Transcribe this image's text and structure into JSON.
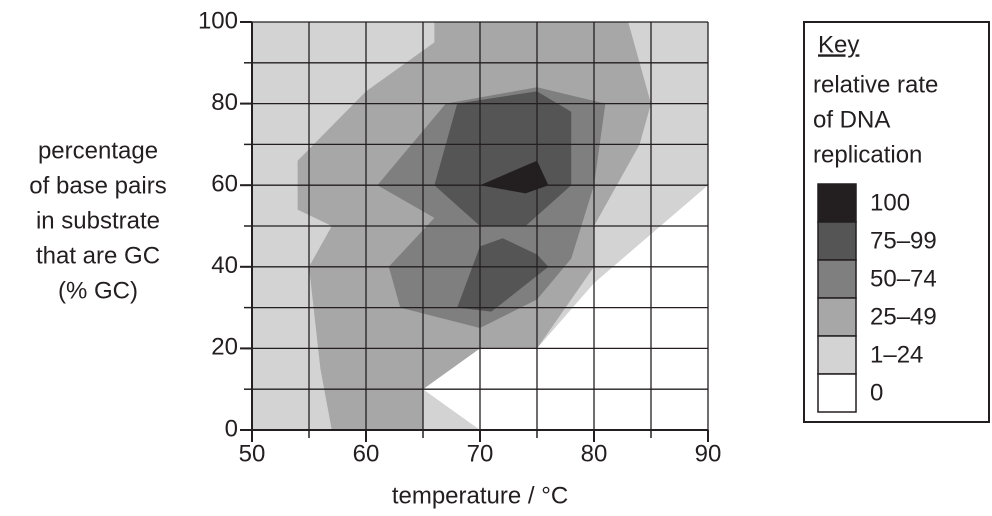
{
  "chart_data": {
    "type": "contour",
    "xlabel": "temperature / °C",
    "ylabel": [
      "percentage",
      "of base pairs",
      "in substrate",
      "that are GC",
      "(% GC)"
    ],
    "xlim": [
      50,
      90
    ],
    "ylim": [
      0,
      100
    ],
    "xticks": [
      50,
      60,
      70,
      80,
      90
    ],
    "yticks": [
      0,
      20,
      40,
      60,
      80,
      100
    ],
    "xgrid": [
      50,
      55,
      60,
      65,
      70,
      75,
      80,
      85,
      90
    ],
    "ygrid": [
      0,
      10,
      20,
      30,
      40,
      50,
      60,
      70,
      80,
      90,
      100
    ],
    "legend_title": "Key",
    "legend_subtitle": [
      "relative rate",
      "of DNA",
      "replication"
    ],
    "series": [
      {
        "name": "100",
        "color": "#231f20",
        "regions": [
          {
            "x": [
              70,
              75,
              76,
              74
            ],
            "y": [
              60,
              66,
              60,
              58
            ]
          }
        ]
      },
      {
        "name": "75–99",
        "color": "#555556",
        "regions": [
          {
            "x": [
              66,
              68,
              75,
              78,
              78,
              74,
              70
            ],
            "y": [
              60,
              80,
              83,
              78,
              60,
              50,
              50
            ]
          },
          {
            "x": [
              68,
              70,
              72,
              75,
              76,
              71
            ],
            "y": [
              30,
              45,
              47,
              43,
              40,
              29
            ]
          }
        ]
      },
      {
        "name": "50–74",
        "color": "#7f7f80",
        "regions": [
          {
            "x": [
              61,
              67,
              75,
              81,
              80,
              78,
              75,
              70,
              63,
              62,
              66
            ],
            "y": [
              60,
              80,
              84,
              80,
              60,
              42,
              32,
              25,
              30,
              40,
              52
            ]
          }
        ]
      },
      {
        "name": "25–49",
        "color": "#a7a7a8",
        "regions": [
          {
            "x": [
              66,
              83,
              84,
              85,
              84,
              80,
              80,
              76,
              75,
              70,
              65,
              65,
              57,
              56,
              55,
              57,
              54,
              54,
              60,
              66
            ],
            "y": [
              100,
              100,
              90,
              80,
              70,
              50,
              40,
              24,
              20,
              20,
              10,
              0,
              0,
              15,
              40,
              50,
              54,
              66,
              83,
              95
            ]
          }
        ]
      },
      {
        "name": "1–24",
        "color": "#d3d3d3",
        "regions": [
          {
            "x": [
              50,
              70,
              65,
              70,
              75,
              80,
              90,
              90,
              50
            ],
            "y": [
              0,
              0,
              10,
              20,
              20,
              36,
              60,
              100,
              100
            ]
          }
        ]
      },
      {
        "name": "0",
        "color": "#ffffff",
        "regions": [
          {
            "x": [
              70,
              90,
              90,
              80,
              75,
              70,
              65
            ],
            "y": [
              0,
              0,
              60,
              36,
              20,
              20,
              10
            ]
          }
        ]
      }
    ]
  }
}
